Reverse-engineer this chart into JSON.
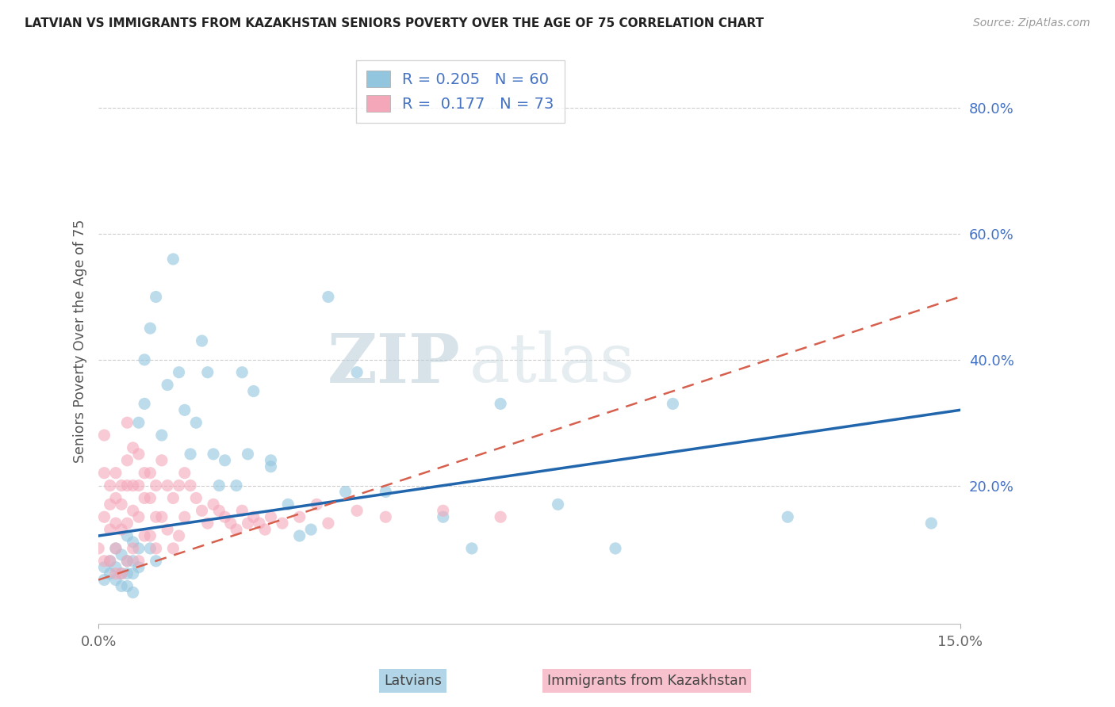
{
  "title": "LATVIAN VS IMMIGRANTS FROM KAZAKHSTAN SENIORS POVERTY OVER THE AGE OF 75 CORRELATION CHART",
  "source": "Source: ZipAtlas.com",
  "ylabel": "Seniors Poverty Over the Age of 75",
  "R_latvian": 0.205,
  "N_latvian": 60,
  "R_kaz": 0.177,
  "N_kaz": 73,
  "color_latvian": "#92c5de",
  "color_kaz": "#f4a7b9",
  "color_latvian_line": "#2166ac",
  "color_kaz_line": "#d6604d",
  "color_right_axis": "#4472c4",
  "legend_latvians": "Latvians",
  "legend_kaz": "Immigrants from Kazakhstan",
  "xlim": [
    0.0,
    0.15
  ],
  "ylim": [
    -0.02,
    0.88
  ],
  "y_ticks": [
    0.2,
    0.4,
    0.6,
    0.8
  ],
  "watermark_zip": "ZIP",
  "watermark_atlas": "atlas",
  "lv_trend": [
    0.12,
    0.32
  ],
  "kaz_trend": [
    0.05,
    0.5
  ],
  "latvian_x": [
    0.001,
    0.001,
    0.002,
    0.002,
    0.003,
    0.003,
    0.003,
    0.004,
    0.004,
    0.004,
    0.005,
    0.005,
    0.005,
    0.005,
    0.006,
    0.006,
    0.006,
    0.006,
    0.007,
    0.007,
    0.007,
    0.008,
    0.008,
    0.009,
    0.009,
    0.01,
    0.01,
    0.011,
    0.012,
    0.013,
    0.014,
    0.015,
    0.016,
    0.017,
    0.018,
    0.019,
    0.02,
    0.021,
    0.022,
    0.024,
    0.025,
    0.026,
    0.027,
    0.03,
    0.03,
    0.033,
    0.035,
    0.037,
    0.04,
    0.043,
    0.045,
    0.05,
    0.06,
    0.065,
    0.07,
    0.08,
    0.09,
    0.1,
    0.12,
    0.145
  ],
  "latvian_y": [
    0.07,
    0.05,
    0.08,
    0.06,
    0.1,
    0.07,
    0.05,
    0.09,
    0.06,
    0.04,
    0.12,
    0.08,
    0.06,
    0.04,
    0.11,
    0.08,
    0.06,
    0.03,
    0.1,
    0.07,
    0.3,
    0.33,
    0.4,
    0.45,
    0.1,
    0.5,
    0.08,
    0.28,
    0.36,
    0.56,
    0.38,
    0.32,
    0.25,
    0.3,
    0.43,
    0.38,
    0.25,
    0.2,
    0.24,
    0.2,
    0.38,
    0.25,
    0.35,
    0.23,
    0.24,
    0.17,
    0.12,
    0.13,
    0.5,
    0.19,
    0.38,
    0.19,
    0.15,
    0.1,
    0.33,
    0.17,
    0.1,
    0.33,
    0.15,
    0.14
  ],
  "kaz_x": [
    0.0,
    0.001,
    0.001,
    0.001,
    0.001,
    0.002,
    0.002,
    0.002,
    0.002,
    0.003,
    0.003,
    0.003,
    0.003,
    0.003,
    0.004,
    0.004,
    0.004,
    0.004,
    0.005,
    0.005,
    0.005,
    0.005,
    0.005,
    0.006,
    0.006,
    0.006,
    0.006,
    0.007,
    0.007,
    0.007,
    0.007,
    0.008,
    0.008,
    0.008,
    0.009,
    0.009,
    0.009,
    0.01,
    0.01,
    0.01,
    0.011,
    0.011,
    0.012,
    0.012,
    0.013,
    0.013,
    0.014,
    0.014,
    0.015,
    0.015,
    0.016,
    0.017,
    0.018,
    0.019,
    0.02,
    0.021,
    0.022,
    0.023,
    0.024,
    0.025,
    0.026,
    0.027,
    0.028,
    0.029,
    0.03,
    0.032,
    0.035,
    0.038,
    0.04,
    0.045,
    0.05,
    0.06,
    0.07
  ],
  "kaz_y": [
    0.1,
    0.28,
    0.22,
    0.15,
    0.08,
    0.2,
    0.17,
    0.13,
    0.08,
    0.22,
    0.18,
    0.14,
    0.1,
    0.06,
    0.2,
    0.17,
    0.13,
    0.06,
    0.3,
    0.24,
    0.2,
    0.14,
    0.08,
    0.26,
    0.2,
    0.16,
    0.1,
    0.25,
    0.2,
    0.15,
    0.08,
    0.22,
    0.18,
    0.12,
    0.22,
    0.18,
    0.12,
    0.2,
    0.15,
    0.1,
    0.24,
    0.15,
    0.2,
    0.13,
    0.18,
    0.1,
    0.2,
    0.12,
    0.22,
    0.15,
    0.2,
    0.18,
    0.16,
    0.14,
    0.17,
    0.16,
    0.15,
    0.14,
    0.13,
    0.16,
    0.14,
    0.15,
    0.14,
    0.13,
    0.15,
    0.14,
    0.15,
    0.17,
    0.14,
    0.16,
    0.15,
    0.16,
    0.15
  ]
}
